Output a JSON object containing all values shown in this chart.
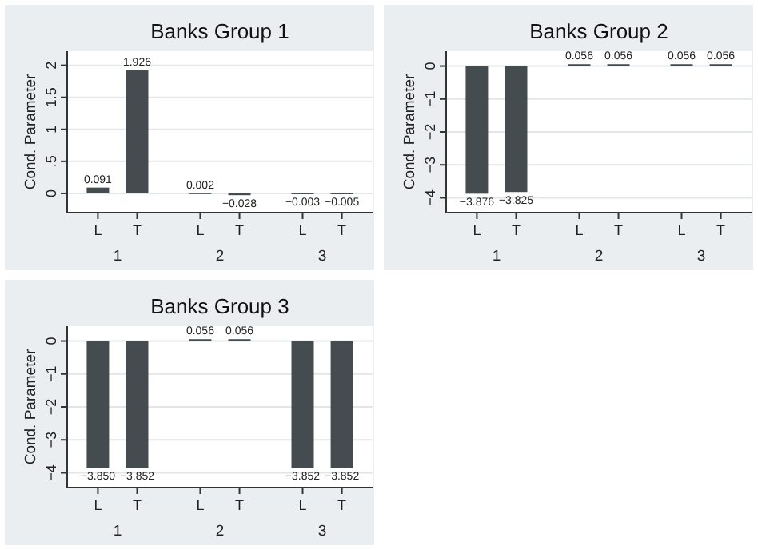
{
  "chart_data": [
    {
      "type": "bar",
      "title": "Banks Group 1",
      "ylabel": "Cond. Parameter",
      "categories": [
        "L",
        "T",
        "L",
        "T",
        "L",
        "T"
      ],
      "annotations": [
        "1",
        "2",
        "3"
      ],
      "values": [
        0.091,
        1.926,
        0.002,
        -0.028,
        -0.003,
        -0.005
      ],
      "value_labels": [
        "0.091",
        "1.926",
        "0.002",
        "−0.028",
        "−0.003",
        "−0.005"
      ],
      "color": "#444c50",
      "ylim": [
        -0.3,
        2.22
      ],
      "yticks": [
        0,
        {
          "value": 0.5,
          "label": ".5"
        },
        1,
        1.5,
        2
      ],
      "grid": "y"
    },
    {
      "type": "bar",
      "title": "Banks Group 2",
      "ylabel": "Cond. Parameter",
      "categories": [
        "L",
        "T",
        "L",
        "T",
        "L",
        "T"
      ],
      "annotations": [
        "1",
        "2",
        "3"
      ],
      "values": [
        -3.876,
        -3.825,
        0.056,
        0.056,
        0.056,
        0.056
      ],
      "value_labels": [
        "−3.876",
        "−3.825",
        "0.056",
        "0.056",
        "0.056",
        "0.056"
      ],
      "color": "#444c50",
      "ylim": [
        -4.45,
        0.45
      ],
      "yticks": [
        0,
        {
          "value": -1,
          "label": "−1"
        },
        {
          "value": -2,
          "label": "−2"
        },
        {
          "value": -3,
          "label": "−3"
        },
        {
          "value": -4,
          "label": "−4"
        }
      ],
      "grid": "y"
    },
    {
      "type": "bar",
      "title": "Banks Group 3",
      "ylabel": "Cond. Parameter",
      "categories": [
        "L",
        "T",
        "L",
        "T",
        "L",
        "T"
      ],
      "annotations": [
        "1",
        "2",
        "3"
      ],
      "values": [
        -3.85,
        -3.852,
        0.056,
        0.056,
        -3.852,
        -3.852
      ],
      "value_labels": [
        "−3.850",
        "−3.852",
        "0.056",
        "0.056",
        "−3.852",
        "−3.852"
      ],
      "color": "#444c50",
      "ylim": [
        -4.45,
        0.45
      ],
      "yticks": [
        0,
        {
          "value": -1,
          "label": "−1"
        },
        {
          "value": -2,
          "label": "−2"
        },
        {
          "value": -3,
          "label": "−3"
        },
        {
          "value": -4,
          "label": "−4"
        }
      ],
      "grid": "y"
    }
  ]
}
